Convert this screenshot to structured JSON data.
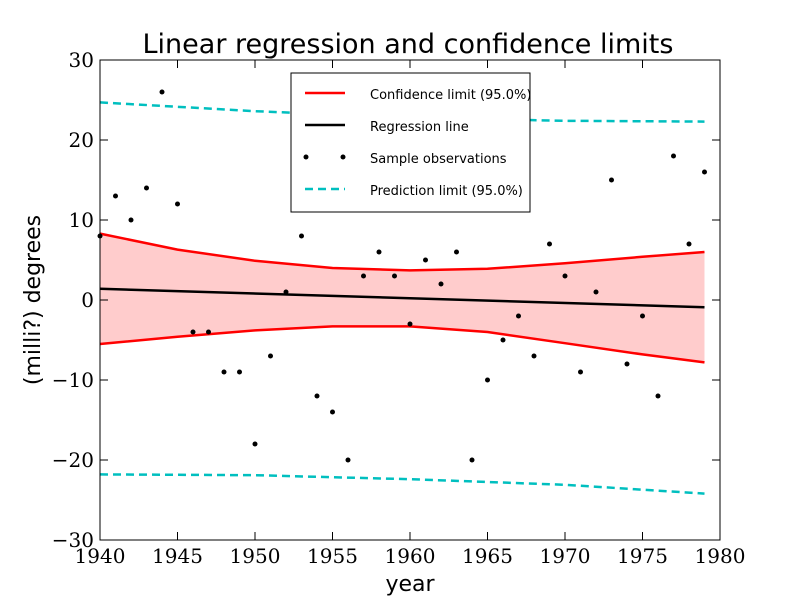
{
  "chart_data": {
    "type": "line",
    "title": "Linear regression and confidence limits",
    "xlabel": "year",
    "ylabel": "(milli?) degrees",
    "xlim": [
      1940,
      1980
    ],
    "ylim": [
      -30,
      30
    ],
    "xticks": [
      1940,
      1945,
      1950,
      1955,
      1960,
      1965,
      1970,
      1975,
      1980
    ],
    "yticks": [
      -30,
      -20,
      -10,
      0,
      10,
      20,
      30
    ],
    "ytick_labels": [
      "−30",
      "−20",
      "−10",
      "0",
      "10",
      "20",
      "30"
    ],
    "grid": false,
    "legend_position": "top-center",
    "observations": {
      "name": "Sample observations",
      "color": "#000000",
      "x": [
        1940,
        1941,
        1942,
        1943,
        1944,
        1945,
        1946,
        1947,
        1948,
        1949,
        1950,
        1951,
        1952,
        1953,
        1954,
        1955,
        1956,
        1957,
        1958,
        1959,
        1960,
        1961,
        1962,
        1963,
        1964,
        1965,
        1966,
        1967,
        1968,
        1969,
        1970,
        1971,
        1972,
        1973,
        1974,
        1975,
        1976,
        1977,
        1978,
        1979
      ],
      "y": [
        8,
        13,
        10,
        14,
        26,
        12,
        -4,
        -4,
        -9,
        -9,
        -18,
        -7,
        1,
        8,
        -12,
        -14,
        -20,
        3,
        6,
        3,
        -3,
        5,
        2,
        6,
        -20,
        -10,
        -5,
        -2,
        -7,
        7,
        3,
        -9,
        1,
        15,
        -8,
        -2,
        -12,
        18,
        7,
        16
      ]
    },
    "regression_line": {
      "name": "Regression line",
      "color": "#000000",
      "x": [
        1940,
        1979
      ],
      "y": [
        1.4,
        -0.9
      ]
    },
    "confidence_limit": {
      "name": "Confidence limit (95.0%)",
      "color": "#ff0000",
      "fill": "#ffcccc",
      "x": [
        1940,
        1945,
        1950,
        1955,
        1960,
        1965,
        1970,
        1975,
        1979
      ],
      "upper": [
        8.3,
        6.3,
        4.9,
        4.0,
        3.7,
        3.9,
        4.6,
        5.4,
        6.0
      ],
      "lower": [
        -5.5,
        -4.6,
        -3.8,
        -3.3,
        -3.3,
        -4.0,
        -5.4,
        -6.8,
        -7.8
      ]
    },
    "prediction_limit": {
      "name": "Prediction limit (95.0%)",
      "color": "#00bfbf",
      "x": [
        1940,
        1950,
        1960,
        1970,
        1979
      ],
      "upper": [
        24.7,
        23.6,
        22.8,
        22.4,
        22.3
      ],
      "lower": [
        -21.8,
        -21.9,
        -22.4,
        -23.1,
        -24.2
      ]
    }
  }
}
